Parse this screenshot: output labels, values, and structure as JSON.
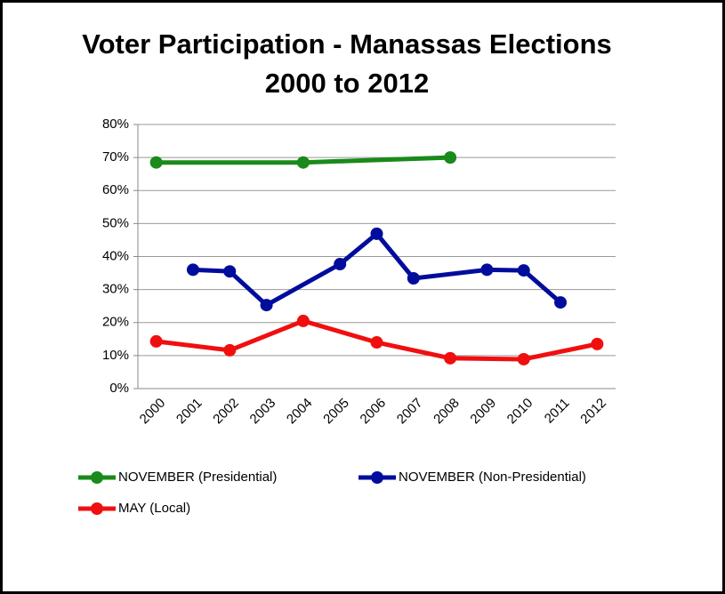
{
  "chart_data": {
    "type": "line",
    "title": "Voter Participation - Manassas Elections\n2000 to 2012",
    "xlim": [
      1999.5,
      2012.5
    ],
    "xticks": [
      2000,
      2001,
      2002,
      2003,
      2004,
      2005,
      2006,
      2007,
      2008,
      2009,
      2010,
      2011,
      2012
    ],
    "ylim": [
      0,
      80
    ],
    "yticks": [
      {
        "value": 0,
        "label": "0%"
      },
      {
        "value": 10,
        "label": "10%"
      },
      {
        "value": 20,
        "label": "20%"
      },
      {
        "value": 30,
        "label": "30%"
      },
      {
        "value": 40,
        "label": "40%"
      },
      {
        "value": 50,
        "label": "50%"
      },
      {
        "value": 60,
        "label": "60%"
      },
      {
        "value": 70,
        "label": "70%"
      },
      {
        "value": 80,
        "label": "80%"
      }
    ],
    "grid": true,
    "legend": "bottom",
    "series": [
      {
        "name": "NOVEMBER (Presidential)",
        "color": "#1a8a1a",
        "x": [
          2000,
          2004,
          2008
        ],
        "values": [
          68.5,
          68.5,
          70
        ]
      },
      {
        "name": "NOVEMBER (Non-Presidential)",
        "color": "#000d9c",
        "x": [
          2001,
          2002,
          2003,
          2005,
          2006,
          2007,
          2009,
          2010,
          2011
        ],
        "values": [
          36,
          35.5,
          25.3,
          37.7,
          46.9,
          33.4,
          36,
          35.8,
          26.1
        ]
      },
      {
        "name": "MAY (Local)",
        "color": "#f00f0f",
        "x": [
          2000,
          2002,
          2004,
          2006,
          2008,
          2010,
          2012
        ],
        "values": [
          14.3,
          11.6,
          20.5,
          14,
          9.2,
          8.9,
          13.5
        ]
      }
    ]
  }
}
